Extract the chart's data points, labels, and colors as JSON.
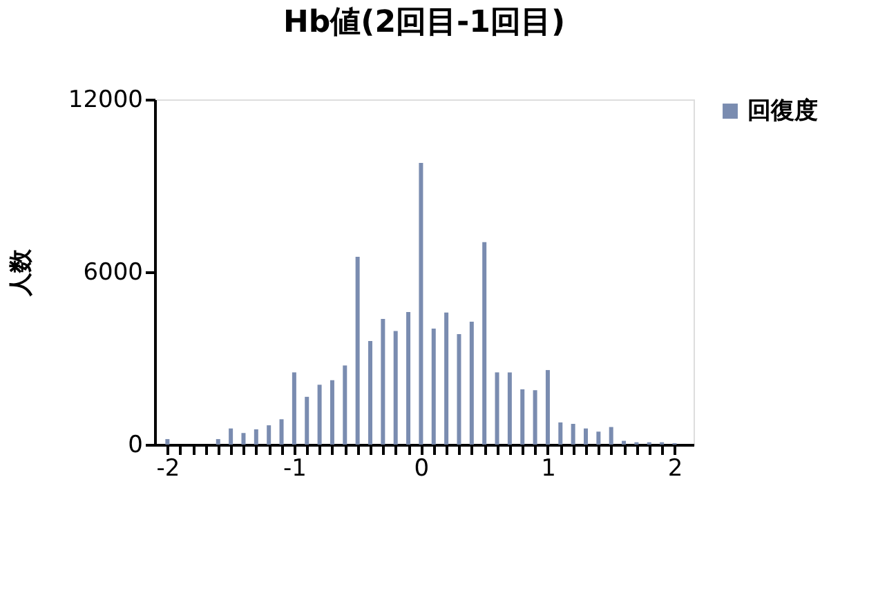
{
  "chart_data": {
    "type": "bar",
    "title": "Hb値(2回目-1回目)",
    "ylabel": "人数",
    "x": [
      -2.0,
      -1.9,
      -1.8,
      -1.7,
      -1.6,
      -1.5,
      -1.4,
      -1.3,
      -1.2,
      -1.1,
      -1.0,
      -0.9,
      -0.8,
      -0.7,
      -0.6,
      -0.5,
      -0.4,
      -0.3,
      -0.2,
      -0.1,
      0.0,
      0.1,
      0.2,
      0.3,
      0.4,
      0.5,
      0.6,
      0.7,
      0.8,
      0.9,
      1.0,
      1.1,
      1.2,
      1.3,
      1.4,
      1.5,
      1.6,
      1.7,
      1.8,
      1.9,
      2.0
    ],
    "series": [
      {
        "name": "回復度",
        "color": "#7a8cb0",
        "values": [
          190,
          0,
          0,
          0,
          190,
          560,
          400,
          530,
          670,
          880,
          2510,
          1660,
          2080,
          2240,
          2750,
          6530,
          3600,
          4370,
          3950,
          4610,
          9790,
          4030,
          4590,
          3840,
          4270,
          7040,
          2510,
          2510,
          1920,
          1890,
          2590,
          770,
          720,
          560,
          450,
          610,
          130,
          80,
          80,
          80,
          50
        ]
      }
    ],
    "xlim": [
      -2.1,
      2.15
    ],
    "xticks": [
      -2,
      {
        "value": -1.9,
        "label": null
      },
      {
        "value": -1.8,
        "label": null
      },
      {
        "value": -1.7,
        "label": null
      },
      {
        "value": -1.6,
        "label": null
      },
      {
        "value": -1.5,
        "label": null
      },
      {
        "value": -1.4,
        "label": null
      },
      {
        "value": -1.3,
        "label": null
      },
      {
        "value": -1.2,
        "label": null
      },
      {
        "value": -1.1,
        "label": null
      },
      -1,
      {
        "value": -0.9,
        "label": null
      },
      {
        "value": -0.8,
        "label": null
      },
      {
        "value": -0.7,
        "label": null
      },
      {
        "value": -0.6,
        "label": null
      },
      {
        "value": -0.5,
        "label": null
      },
      {
        "value": -0.4,
        "label": null
      },
      {
        "value": -0.3,
        "label": null
      },
      {
        "value": -0.2,
        "label": null
      },
      {
        "value": -0.1,
        "label": null
      },
      0,
      {
        "value": 0.1,
        "label": null
      },
      {
        "value": 0.2,
        "label": null
      },
      {
        "value": 0.3,
        "label": null
      },
      {
        "value": 0.4,
        "label": null
      },
      {
        "value": 0.5,
        "label": null
      },
      {
        "value": 0.6,
        "label": null
      },
      {
        "value": 0.7,
        "label": null
      },
      {
        "value": 0.8,
        "label": null
      },
      {
        "value": 0.9,
        "label": null
      },
      1,
      {
        "value": 1.1,
        "label": null
      },
      {
        "value": 1.2,
        "label": null
      },
      {
        "value": 1.3,
        "label": null
      },
      {
        "value": 1.4,
        "label": null
      },
      {
        "value": 1.5,
        "label": null
      },
      {
        "value": 1.6,
        "label": null
      },
      {
        "value": 1.7,
        "label": null
      },
      {
        "value": 1.8,
        "label": null
      },
      {
        "value": 1.9,
        "label": null
      },
      2
    ],
    "ylim": [
      0,
      12000
    ],
    "yticks": [
      0,
      6000,
      12000
    ],
    "grid": false,
    "legend": "right"
  }
}
